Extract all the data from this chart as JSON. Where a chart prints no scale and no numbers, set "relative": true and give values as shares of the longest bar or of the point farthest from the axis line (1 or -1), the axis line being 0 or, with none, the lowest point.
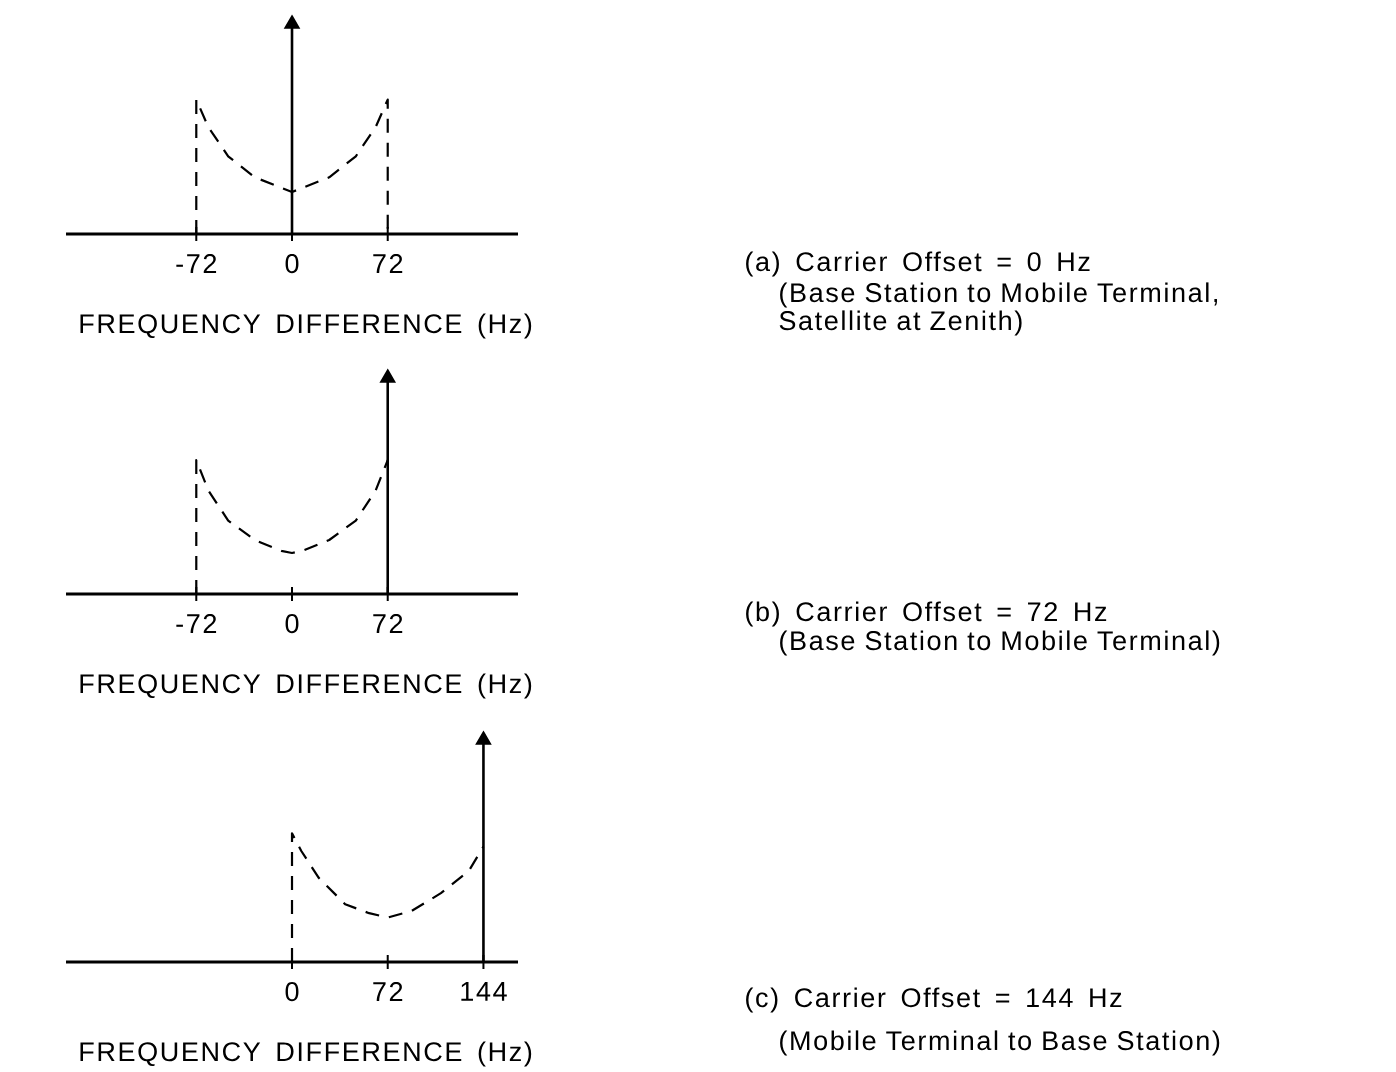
{
  "chart_data": [
    {
      "type": "line",
      "annotations": [
        "(a) Carrier Offset = 0 Hz",
        "(Base Station to Mobile Terminal, Satellite at Zenith)"
      ],
      "xlabel": "FREQUENCY DIFFERENCE (Hz)",
      "relative": true,
      "xlim": [
        -170,
        170
      ],
      "xticks": [
        -72,
        0,
        72
      ],
      "series": [
        {
          "type": "line",
          "line_style": "dashed",
          "color": "#000000",
          "x": [
            -72,
            -72,
            -63,
            -48,
            -28,
            -8,
            0,
            8,
            28,
            48,
            63,
            72,
            72
          ],
          "values": [
            0,
            0.64,
            0.51,
            0.37,
            0.27,
            0.22,
            0.2,
            0.22,
            0.27,
            0.37,
            0.51,
            0.64,
            0
          ]
        },
        {
          "type": "lollipop",
          "marker": "triangle",
          "color": "#000000",
          "x": [
            0
          ],
          "values": [
            1
          ]
        }
      ]
    },
    {
      "type": "line",
      "annotations": [
        "(b) Carrier Offset = 72 Hz",
        "(Base Station to Mobile Terminal)"
      ],
      "xlabel": "FREQUENCY DIFFERENCE (Hz)",
      "relative": true,
      "xlim": [
        -170,
        170
      ],
      "xticks": [
        -72,
        0,
        72
      ],
      "series": [
        {
          "type": "line",
          "line_style": "dashed",
          "color": "#000000",
          "x": [
            -72,
            -72,
            -63,
            -48,
            -28,
            -8,
            0,
            8,
            28,
            48,
            63,
            72
          ],
          "values": [
            0,
            0.62,
            0.48,
            0.34,
            0.25,
            0.2,
            0.19,
            0.2,
            0.25,
            0.34,
            0.48,
            0.62
          ]
        },
        {
          "type": "lollipop",
          "marker": "triangle",
          "color": "#000000",
          "x": [
            72
          ],
          "values": [
            1
          ]
        }
      ]
    },
    {
      "type": "line",
      "annotations": [
        "(c) Carrier Offset = 144 Hz",
        "(Mobile Terminal to Base Station)"
      ],
      "xlabel": "FREQUENCY DIFFERENCE (Hz)",
      "relative": true,
      "xlim": [
        -170,
        170
      ],
      "xticks": [
        0,
        72,
        144
      ],
      "series": [
        {
          "type": "line",
          "line_style": "dashed",
          "color": "#000000",
          "x": [
            0,
            0,
            7,
            20,
            40,
            58,
            72,
            90,
            112,
            133,
            144
          ],
          "values": [
            0,
            0.58,
            0.5,
            0.38,
            0.26,
            0.22,
            0.2,
            0.23,
            0.31,
            0.41,
            0.52
          ]
        },
        {
          "type": "lollipop",
          "marker": "triangle",
          "color": "#000000",
          "x": [
            144
          ],
          "values": [
            1
          ]
        }
      ]
    }
  ]
}
